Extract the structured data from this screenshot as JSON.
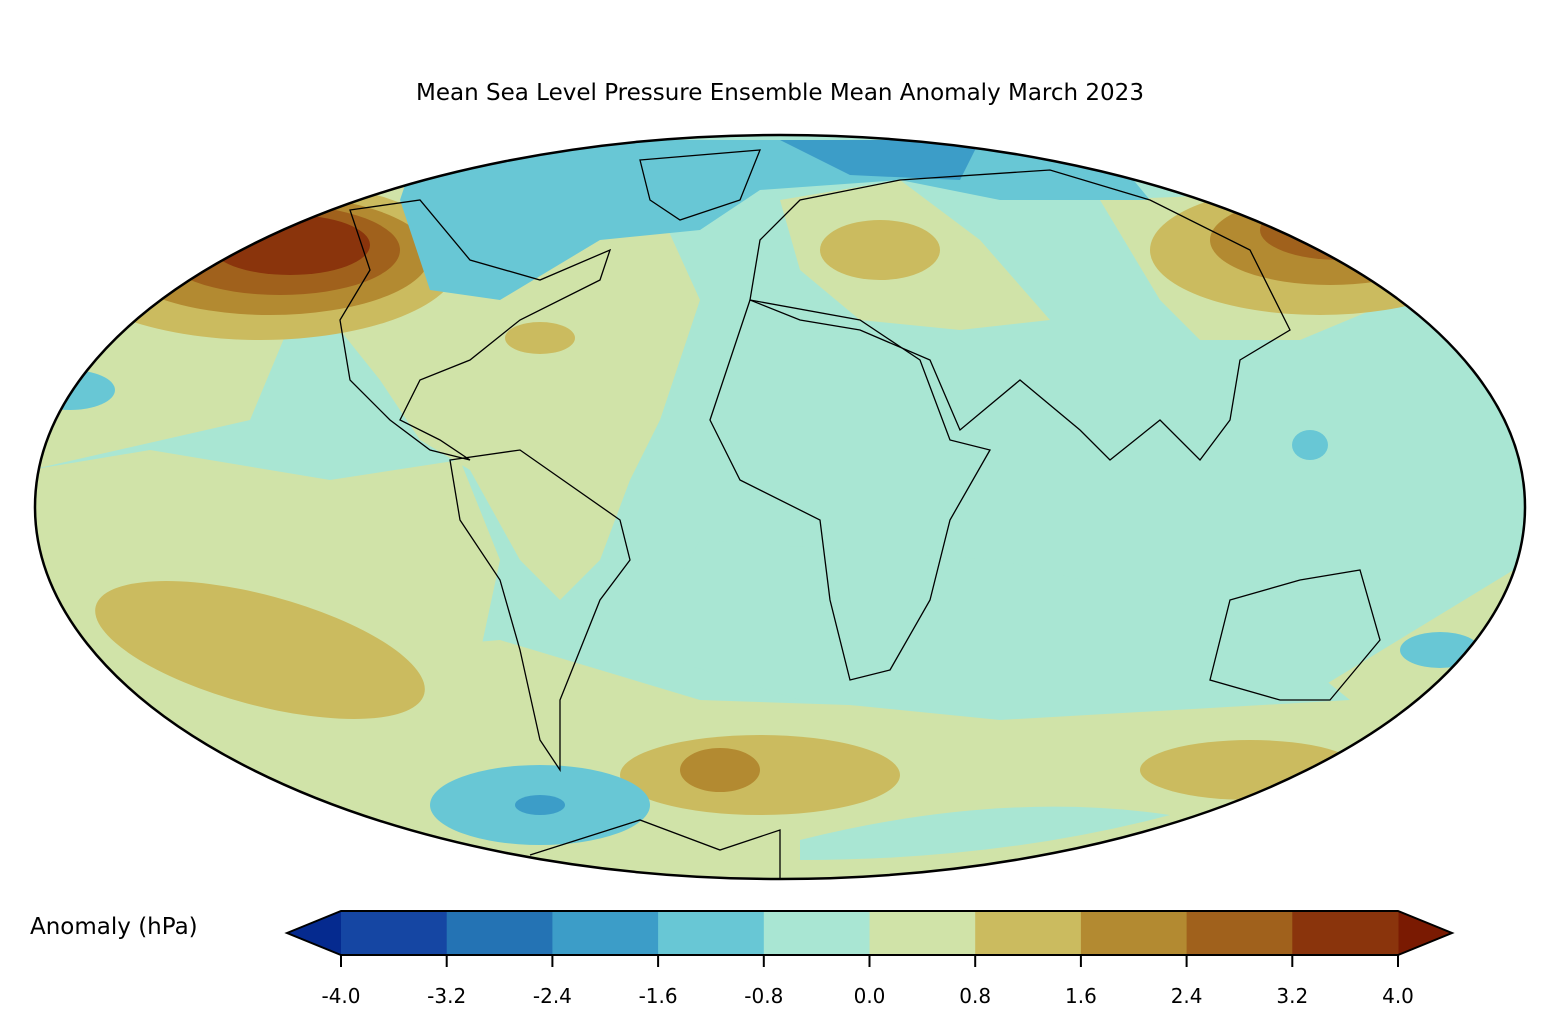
{
  "title": "Mean Sea Level Pressure Ensemble Mean Anomaly March 2023",
  "colorbar": {
    "label": "Anomaly (hPa)",
    "ticks": [
      "-4.0",
      "-3.2",
      "-2.4",
      "-1.6",
      "-0.8",
      "0.0",
      "0.8",
      "1.6",
      "2.4",
      "3.2",
      "4.0"
    ],
    "levels": [
      -4.0,
      -3.2,
      -2.4,
      -1.6,
      -0.8,
      0.0,
      0.8,
      1.6,
      2.4,
      3.2,
      4.0
    ],
    "colors": [
      "#1546a3",
      "#2473b4",
      "#3c9dc8",
      "#68c7d5",
      "#a9e6d3",
      "#d0e3a8",
      "#cbbb5f",
      "#b38a31",
      "#a0611c",
      "#8a340c"
    ],
    "under_color": "#052a8f",
    "over_color": "#7a1a02",
    "extend": "both"
  },
  "map": {
    "projection": "Mollweide",
    "variable": "Mean sea level pressure anomaly",
    "units": "hPa"
  }
}
